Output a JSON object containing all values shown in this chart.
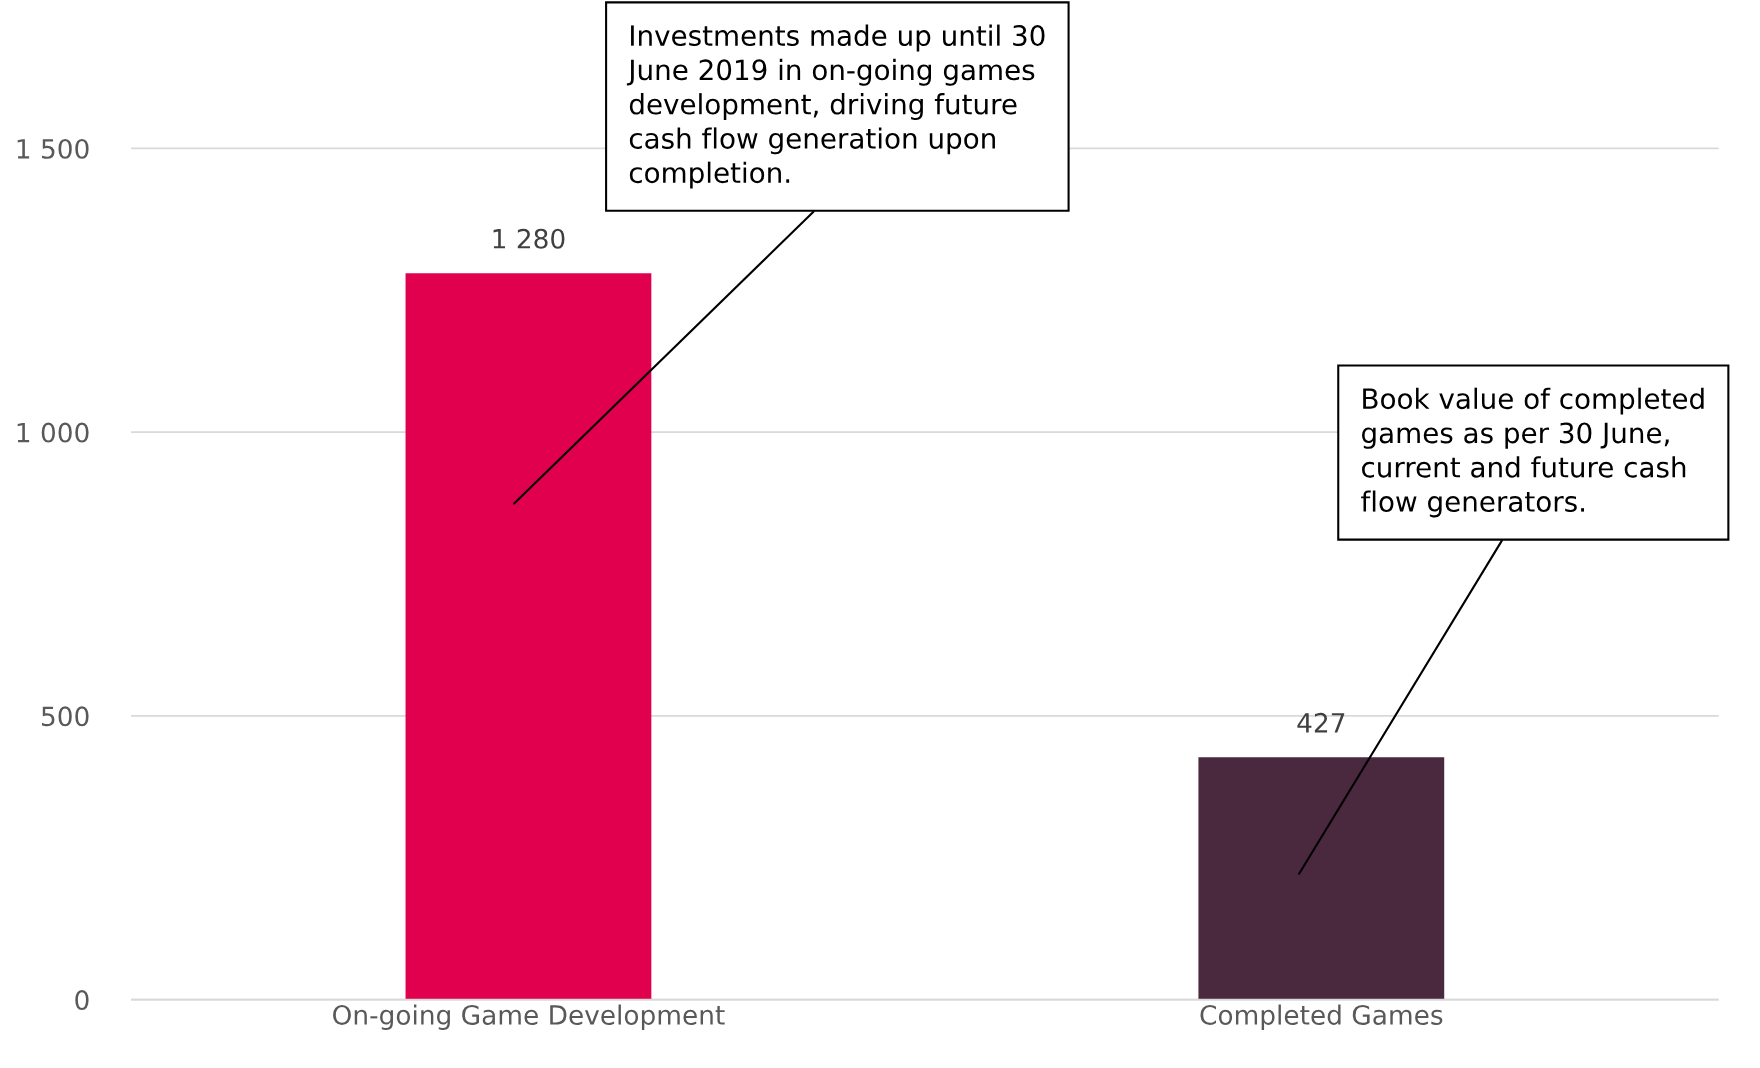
{
  "chart_data": {
    "type": "bar",
    "categories": [
      "On-going Game Development",
      "Completed Games"
    ],
    "values": [
      1280,
      427
    ],
    "colors": [
      "#e0004d",
      "#4a283e"
    ],
    "value_labels": [
      "1 280",
      "427"
    ],
    "ylim": [
      0,
      1500
    ],
    "yticks": [
      0,
      500,
      {
        "value": 1000,
        "label": "1 000"
      },
      {
        "value": 1500,
        "label": "1 500"
      }
    ],
    "grid": "y",
    "legend": false,
    "annotations": [
      "Investments made up until 30\nJune 2019 in on-going games\ndevelopment, driving future\ncash flow generation upon\ncompletion.",
      "Book value of completed\ngames as per 30 June,\ncurrent and future cash\nflow generators."
    ]
  }
}
